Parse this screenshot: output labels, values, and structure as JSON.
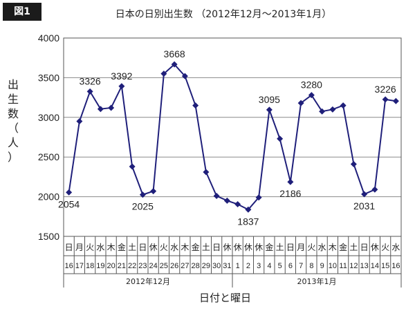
{
  "figure_label": "図1",
  "chart_data": {
    "type": "line",
    "title": "日本の日別出生数 （2012年12月～2013年1月）",
    "xlabel": "日付と曜日",
    "ylabel": "出生数（人）",
    "ylim": [
      1500,
      4000
    ],
    "yticks": [
      1500,
      2000,
      2500,
      3000,
      3500,
      4000
    ],
    "grid": true,
    "line_color": "#1f1f7a",
    "dates": [
      "16",
      "17",
      "18",
      "19",
      "20",
      "21",
      "22",
      "23",
      "24",
      "25",
      "26",
      "27",
      "28",
      "29",
      "30",
      "31",
      "1",
      "2",
      "3",
      "4",
      "5",
      "6",
      "7",
      "8",
      "9",
      "10",
      "11",
      "12",
      "13",
      "14",
      "15",
      "16"
    ],
    "weekdays": [
      "日",
      "月",
      "火",
      "水",
      "木",
      "金",
      "土",
      "日",
      "休",
      "火",
      "水",
      "木",
      "金",
      "土",
      "日",
      "休",
      "休",
      "休",
      "休",
      "金",
      "土",
      "日",
      "月",
      "火",
      "水",
      "木",
      "金",
      "土",
      "日",
      "休",
      "火",
      "水"
    ],
    "month_groups": [
      {
        "label": "2012年12月",
        "count": 16
      },
      {
        "label": "2013年1月",
        "count": 16
      }
    ],
    "values": [
      2054,
      2950,
      3326,
      3105,
      3120,
      3392,
      2380,
      2025,
      2070,
      3550,
      3668,
      3520,
      3150,
      2310,
      2010,
      1950,
      1905,
      1837,
      1990,
      3095,
      2730,
      2186,
      3180,
      3280,
      3075,
      3100,
      3150,
      2410,
      2031,
      2090,
      3226,
      3205
    ],
    "data_labels": [
      {
        "index": 0,
        "text": "2054",
        "pos": "below"
      },
      {
        "index": 2,
        "text": "3326",
        "pos": "above"
      },
      {
        "index": 5,
        "text": "3392",
        "pos": "above"
      },
      {
        "index": 7,
        "text": "2025",
        "pos": "below"
      },
      {
        "index": 10,
        "text": "3668",
        "pos": "above"
      },
      {
        "index": 17,
        "text": "1837",
        "pos": "below"
      },
      {
        "index": 19,
        "text": "3095",
        "pos": "above"
      },
      {
        "index": 21,
        "text": "2186",
        "pos": "below"
      },
      {
        "index": 23,
        "text": "3280",
        "pos": "above"
      },
      {
        "index": 28,
        "text": "2031",
        "pos": "below"
      },
      {
        "index": 30,
        "text": "3226",
        "pos": "above"
      }
    ]
  }
}
